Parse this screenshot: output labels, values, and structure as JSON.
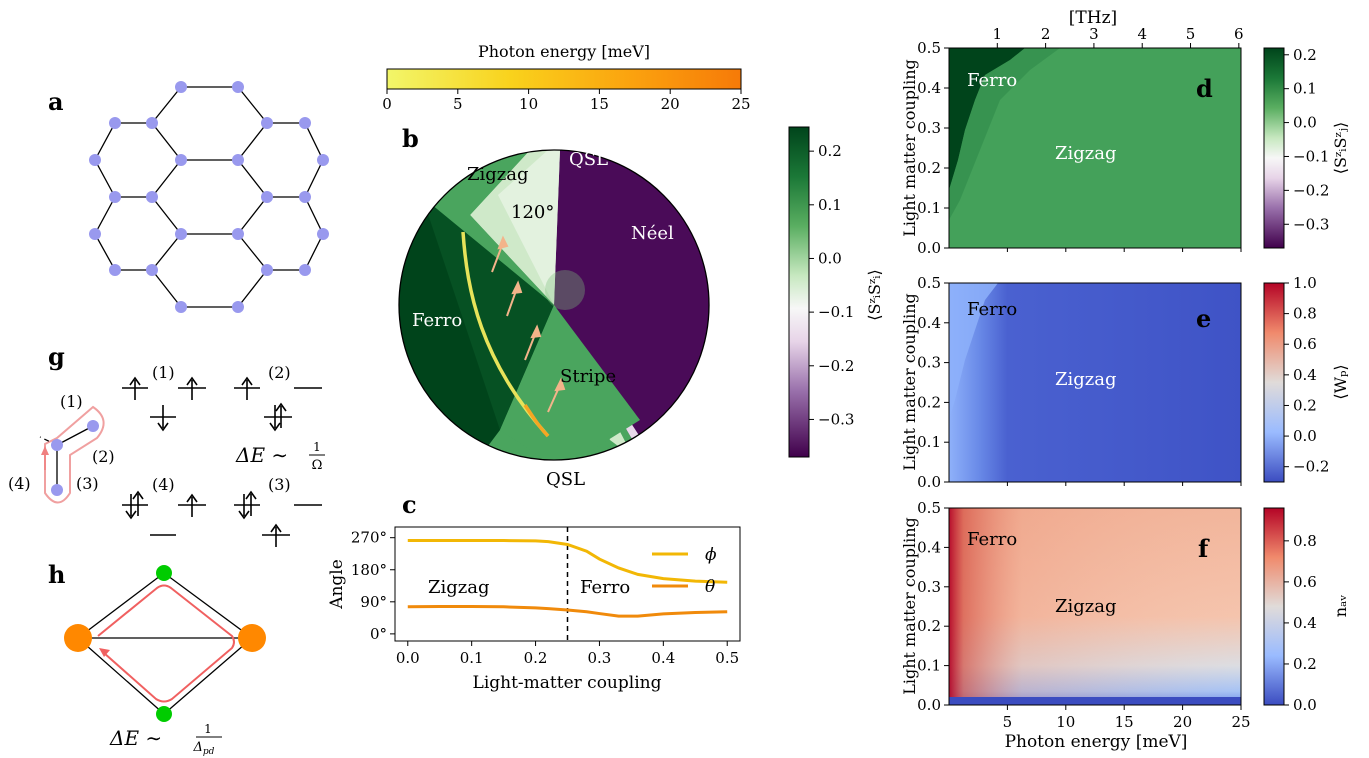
{
  "panels": {
    "a": "a",
    "b": "b",
    "c": "c",
    "d": "d",
    "e": "e",
    "f": "f",
    "g": "g",
    "h": "h"
  },
  "colors": {
    "honeycomb_site": "#9999ee",
    "ferro_green": "#00441b",
    "zigzag_green": "#4aa55e",
    "neel_purple": "#40004b",
    "path_red": "#f08080",
    "orange_site": "#ff8800",
    "green_site": "#00cc00",
    "phi_line": "#f2b705",
    "theta_line": "#f08a0b",
    "e_blue": "#3b4cc0",
    "e_red": "#b40426"
  },
  "photon_colorbar": {
    "label": "Photon energy [meV]",
    "ticks": [
      "0",
      "5",
      "10",
      "15",
      "20",
      "25"
    ]
  },
  "polar_plot": {
    "regions": {
      "zigzag": "Zigzag",
      "qsl_top": "QSL",
      "angle_120": "120°",
      "neel": "Néel",
      "ferro": "Ferro",
      "stripe": "Stripe",
      "qsl_bottom": "QSL"
    }
  },
  "szsz_colorbar_b": {
    "label": "⟨SᶻᵢSᶻᵢ⟩",
    "ticks": [
      "0.2",
      "0.1",
      "0.0",
      "−0.1",
      "−0.2",
      "−0.3"
    ]
  },
  "panel_g": {
    "sites": [
      "(1)",
      "(2)",
      "(3)",
      "(4)"
    ],
    "configs": [
      "(1)",
      "(2)",
      "(4)",
      "(3)"
    ],
    "delta_e": "ΔE ∼",
    "frac_num": "1",
    "frac_den": "Ω"
  },
  "panel_h": {
    "delta_e": "ΔE ∼",
    "frac_num": "1",
    "frac_den": "Δ",
    "frac_den_sub": "pd"
  },
  "chart_data": [
    {
      "type": "line",
      "panel": "c",
      "xlabel": "Light-matter coupling",
      "ylabel": "Angle",
      "xlim": [
        -0.02,
        0.52
      ],
      "ylim": [
        -20,
        300
      ],
      "x_ticks": [
        "0.0",
        "0.1",
        "0.2",
        "0.3",
        "0.4",
        "0.5"
      ],
      "y_ticks": [
        "0°",
        "90°",
        "180°",
        "270°"
      ],
      "x": [
        0.0,
        0.05,
        0.1,
        0.15,
        0.2,
        0.22,
        0.25,
        0.28,
        0.3,
        0.33,
        0.36,
        0.4,
        0.45,
        0.5
      ],
      "series": [
        {
          "name": "ϕ",
          "values": [
            262,
            262,
            262,
            262,
            261,
            259,
            251,
            232,
            210,
            185,
            167,
            155,
            148,
            145
          ]
        },
        {
          "name": "θ",
          "values": [
            76,
            77,
            77,
            76,
            73,
            71,
            67,
            62,
            57,
            50,
            50,
            56,
            60,
            62
          ]
        }
      ],
      "vline": 0.25,
      "annotations": [
        "Zigzag",
        "Ferro"
      ],
      "legend": "top-right",
      "grid": false
    },
    {
      "type": "heatmap",
      "panel": "d",
      "ylabel": "Light matter coupling",
      "top_axis_label": "[THz]",
      "top_ticks": [
        "1",
        "2",
        "3",
        "4",
        "5",
        "6"
      ],
      "x_range": [
        0,
        25
      ],
      "y_range": [
        0,
        0.5
      ],
      "y_ticks": [
        "0.0",
        "0.1",
        "0.2",
        "0.3",
        "0.4",
        "0.5"
      ],
      "regions": [
        "Ferro",
        "Zigzag"
      ],
      "colorbar_label": "⟨SᶻᵢSᶻⱼ⟩",
      "colorbar_ticks": [
        "0.2",
        "0.1",
        "0.0",
        "−0.1",
        "−0.2",
        "−0.3"
      ],
      "colorbar_range": [
        -0.37,
        0.22
      ]
    },
    {
      "type": "heatmap",
      "panel": "e",
      "ylabel": "Light matter coupling",
      "x_range": [
        0,
        25
      ],
      "y_range": [
        0,
        0.5
      ],
      "y_ticks": [
        "0.0",
        "0.1",
        "0.2",
        "0.3",
        "0.4",
        "0.5"
      ],
      "regions": [
        "Ferro",
        "Zigzag"
      ],
      "colorbar_label": "⟨Wₚ⟩",
      "colorbar_ticks": [
        "1.0",
        "0.8",
        "0.6",
        "0.4",
        "0.2",
        "0.0",
        "−0.2"
      ],
      "colorbar_range": [
        -0.3,
        1.0
      ]
    },
    {
      "type": "heatmap",
      "panel": "f",
      "xlabel": "Photon energy [meV]",
      "ylabel": "Light matter coupling",
      "x_range": [
        0,
        25
      ],
      "x_ticks": [
        "5",
        "10",
        "15",
        "20",
        "25"
      ],
      "y_range": [
        0,
        0.5
      ],
      "y_ticks": [
        "0.0",
        "0.1",
        "0.2",
        "0.3",
        "0.4",
        "0.5"
      ],
      "regions": [
        "Ferro",
        "Zigzag"
      ],
      "colorbar_label": "nₐᵥ",
      "colorbar_ticks": [
        "0.8",
        "0.6",
        "0.4",
        "0.2",
        "0.0"
      ],
      "colorbar_range": [
        0,
        0.96
      ]
    }
  ]
}
